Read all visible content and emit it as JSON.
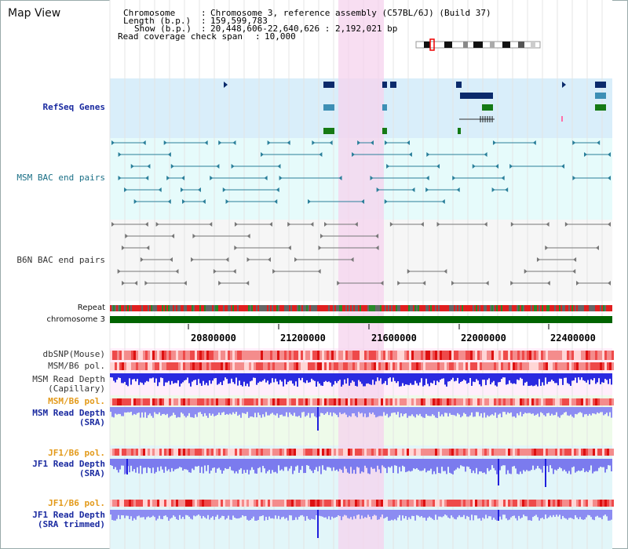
{
  "page_title": "Map View",
  "header": {
    "chromosome_key": "Chromosome",
    "chromosome_value": "Chromosome 3, reference assembly (C57BL/6J) (Build 37)",
    "length_key": "Length (b.p.)",
    "length_value": "159,599,783",
    "show_key": "Show (b.p.)",
    "show_value": "20,448,606-22,640,626 : 2,192,021 bp",
    "coverage_key": "Read coverage check span",
    "coverage_value": "10,000"
  },
  "tracks": {
    "refseq": "RefSeq Genes",
    "msm_bac": "MSM BAC end pairs",
    "b6n_bac": "B6N BAC end pairs",
    "repeat": "Repeat",
    "chromosome": "chromosome 3",
    "dbsnp": "dbSNP(Mouse)",
    "msm_b6_pol_1": "MSM/B6 pol.",
    "msm_depth_cap_1": "MSM Read Depth",
    "msm_depth_cap_2": "(Capillary)",
    "msm_b6_pol_2": "MSM/B6 pol.",
    "msm_depth_sra_1": "MSM Read Depth",
    "msm_depth_sra_2": "(SRA)",
    "jf1_b6_pol_1": "JF1/B6 pol.",
    "jf1_depth_sra_1": "JF1 Read Depth",
    "jf1_depth_sra_2": "(SRA)",
    "jf1_b6_pol_2": "JF1/B6 pol.",
    "jf1_depth_trim_1": "JF1 Read Depth",
    "jf1_depth_trim_2": "(SRA trimmed)"
  },
  "axis_ticks": [
    "20800000",
    "21200000",
    "21600000",
    "22000000",
    "22400000"
  ],
  "colors": {
    "refseq_bg": "#d9eefa",
    "bac_bg": "#e6fbfb",
    "highlight": "#f6d3ee",
    "gene_dark": "#0b2a6b",
    "gene_light": "#3d8fb5",
    "gene_green": "#157a15",
    "chromosome_bar": "#006400",
    "depth_blue": "#3333ff"
  }
}
